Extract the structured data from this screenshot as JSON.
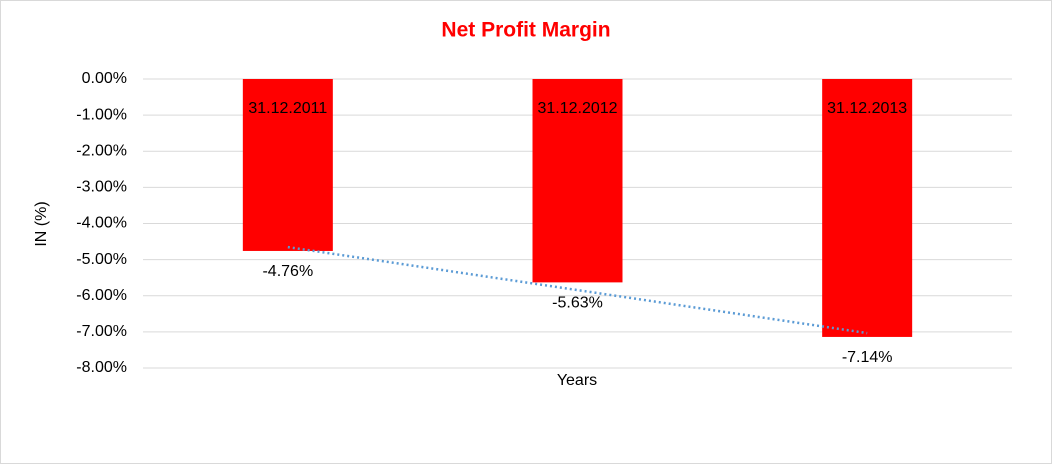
{
  "chart_data": {
    "type": "bar",
    "title": "Net Profit Margin",
    "x_label": "Years",
    "y_label": "IN (%)",
    "categories": [
      "31.12.2011",
      "31.12.2012",
      "31.12.2013"
    ],
    "values": [
      -4.76,
      -5.63,
      -7.14
    ],
    "value_labels": [
      "-4.76%",
      "-5.63%",
      "-7.14%"
    ],
    "color": "#ff0000",
    "title_color": "#ff0000",
    "trendline": true,
    "trendline_color": "#5b9bd5",
    "ylim": [
      -8,
      0
    ],
    "yticks": [
      {
        "value": 0,
        "label": "0.00%"
      },
      {
        "value": -1,
        "label": "-1.00%"
      },
      {
        "value": -2,
        "label": "-2.00%"
      },
      {
        "value": -3,
        "label": "-3.00%"
      },
      {
        "value": -4,
        "label": "-4.00%"
      },
      {
        "value": -5,
        "label": "-5.00%"
      },
      {
        "value": -6,
        "label": "-6.00%"
      },
      {
        "value": -7,
        "label": "-7.00%"
      },
      {
        "value": -8,
        "label": "-8.00%"
      }
    ],
    "grid": true
  }
}
